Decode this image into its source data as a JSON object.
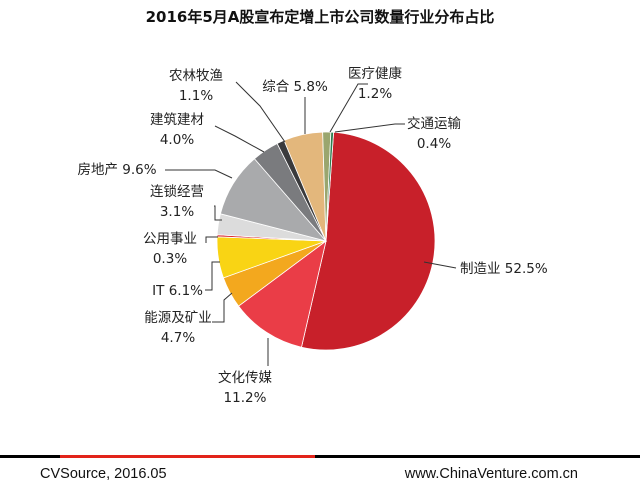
{
  "chart_data": {
    "type": "pie",
    "title": "2016年5月A股宣布定增上市公司数量行业分布占比",
    "slices": [
      {
        "name": "制造业",
        "value_label": "52.5%",
        "value": 52.5,
        "color": "#c8202a"
      },
      {
        "name": "文化传媒",
        "value_label": "11.2%",
        "value": 11.2,
        "color": "#ea3d47"
      },
      {
        "name": "能源及矿业",
        "value_label": "4.7%",
        "value": 4.7,
        "color": "#f3a81e"
      },
      {
        "name": "IT",
        "value_label": "6.1%",
        "value": 6.1,
        "color": "#f9d414"
      },
      {
        "name": "公用事业",
        "value_label": "0.3%",
        "value": 0.3,
        "color": "#d81e24"
      },
      {
        "name": "连锁经营",
        "value_label": "3.1%",
        "value": 3.1,
        "color": "#dcdcdc"
      },
      {
        "name": "房地产",
        "value_label": "9.6%",
        "value": 9.6,
        "color": "#a9aaac"
      },
      {
        "name": "建筑建材",
        "value_label": "4.0%",
        "value": 4.0,
        "color": "#7a7b7e"
      },
      {
        "name": "农林牧渔",
        "value_label": "1.1%",
        "value": 1.1,
        "color": "#3a3a3c"
      },
      {
        "name": "综合",
        "value_label": "5.8%",
        "value": 5.8,
        "color": "#e3b77c"
      },
      {
        "name": "医疗健康",
        "value_label": "1.2%",
        "value": 1.2,
        "color": "#9aa66e"
      },
      {
        "name": "交通运输",
        "value_label": "0.4%",
        "value": 0.4,
        "color": "#2e7d4f"
      }
    ]
  },
  "footer": {
    "source": "CVSource, 2016.05",
    "website": "www.ChinaVenture.com.cn"
  }
}
